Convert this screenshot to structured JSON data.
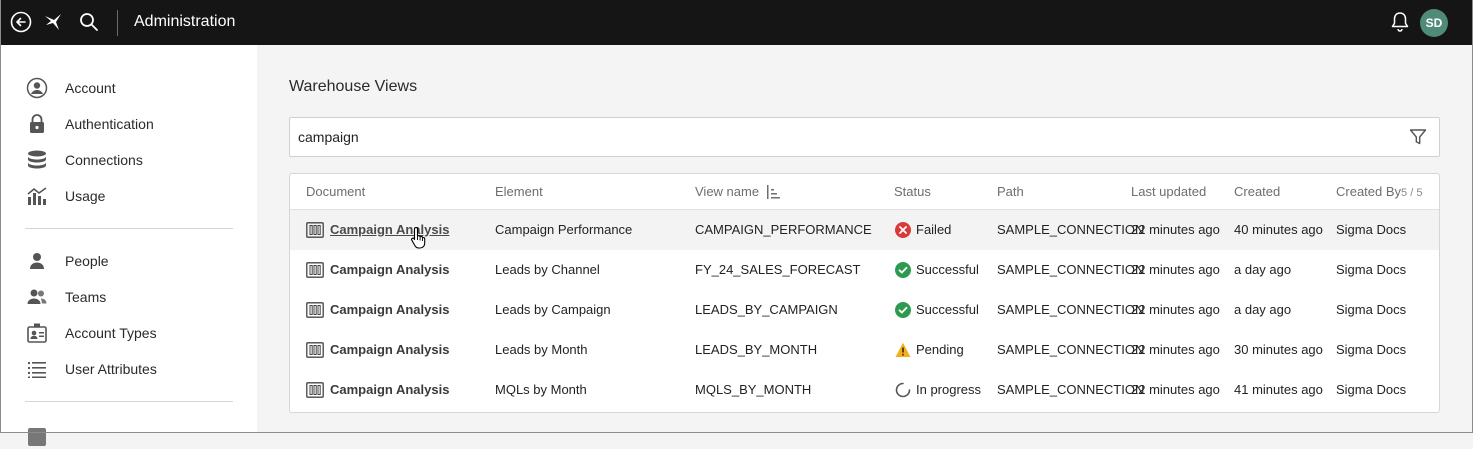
{
  "topbar": {
    "title": "Administration",
    "avatar_initials": "SD",
    "avatar_color": "#4f8b78"
  },
  "sidebar": {
    "groups": [
      [
        {
          "label": "Account",
          "icon": "user-circle-icon"
        },
        {
          "label": "Authentication",
          "icon": "lock-icon"
        },
        {
          "label": "Connections",
          "icon": "database-icon"
        },
        {
          "label": "Usage",
          "icon": "usage-chart-icon"
        }
      ],
      [
        {
          "label": "People",
          "icon": "person-icon"
        },
        {
          "label": "Teams",
          "icon": "teams-icon"
        },
        {
          "label": "Account Types",
          "icon": "badge-icon"
        },
        {
          "label": "User Attributes",
          "icon": "list-icon"
        }
      ]
    ]
  },
  "main": {
    "title": "Warehouse Views",
    "search": {
      "value": "campaign"
    },
    "table": {
      "columns": {
        "document": "Document",
        "element": "Element",
        "view_name": "View name",
        "status": "Status",
        "path": "Path",
        "last_updated": "Last updated",
        "created": "Created",
        "created_by": "Created By",
        "count": "5 / 5"
      },
      "rows": [
        {
          "document": "Campaign Analysis",
          "element": "Campaign Performance",
          "view_name": "CAMPAIGN_PERFORMANCE",
          "status": "Failed",
          "status_type": "failed",
          "path": "SAMPLE_CONNECTION",
          "last_updated": "22 minutes ago",
          "created": "40 minutes ago",
          "created_by": "Sigma Docs"
        },
        {
          "document": "Campaign Analysis",
          "element": "Leads by Channel",
          "view_name": "FY_24_SALES_FORECAST",
          "status": "Successful",
          "status_type": "success",
          "path": "SAMPLE_CONNECTION",
          "last_updated": "22 minutes ago",
          "created": "a day ago",
          "created_by": "Sigma Docs"
        },
        {
          "document": "Campaign Analysis",
          "element": "Leads by Campaign",
          "view_name": "LEADS_BY_CAMPAIGN",
          "status": "Successful",
          "status_type": "success",
          "path": "SAMPLE_CONNECTION",
          "last_updated": "22 minutes ago",
          "created": "a day ago",
          "created_by": "Sigma Docs"
        },
        {
          "document": "Campaign Analysis",
          "element": "Leads by Month",
          "view_name": "LEADS_BY_MONTH",
          "status": "Pending",
          "status_type": "pending",
          "path": "SAMPLE_CONNECTION",
          "last_updated": "22 minutes ago",
          "created": "30 minutes ago",
          "created_by": "Sigma Docs"
        },
        {
          "document": "Campaign Analysis",
          "element": "MQLs by Month",
          "view_name": "MQLS_BY_MONTH",
          "status": "In progress",
          "status_type": "progress",
          "path": "SAMPLE_CONNECTION",
          "last_updated": "22 minutes ago",
          "created": "41 minutes ago",
          "created_by": "Sigma Docs"
        }
      ]
    }
  },
  "colors": {
    "failed": "#d93a3a",
    "success": "#2e9a4f",
    "pending": "#f2b01e",
    "topbar": "#151515"
  }
}
